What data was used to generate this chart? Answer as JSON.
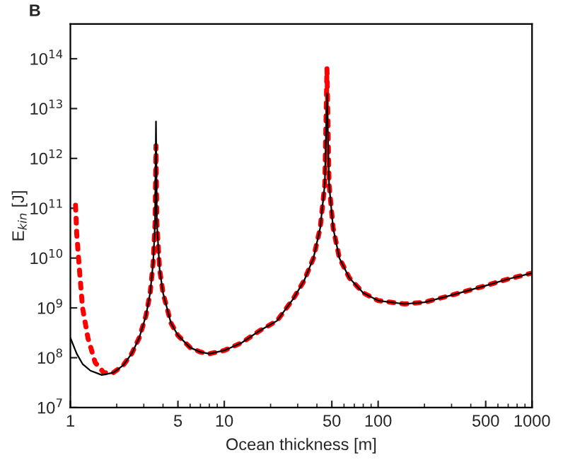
{
  "chart_data": {
    "type": "line",
    "title": "B",
    "xlabel": "Ocean thickness [m]",
    "ylabel": "E$_{kin}$ [J]",
    "log": "xy",
    "grid": false,
    "legend": false,
    "xlim": [
      1,
      1000
    ],
    "xticks": [
      1,
      5,
      10,
      50,
      100,
      500,
      1000
    ],
    "ylim": [
      10000000.0,
      500000000000000.0
    ],
    "yticks": [
      {
        "value": 10000000.0,
        "label": "10$^{7}$"
      },
      {
        "value": 100000000.0,
        "label": "10$^{8}$"
      },
      {
        "value": 1000000000.0,
        "label": "10$^{9}$"
      },
      {
        "value": 10000000000.0,
        "label": "10$^{10}$"
      },
      {
        "value": 100000000000.0,
        "label": "10$^{11}$"
      },
      {
        "value": 1000000000000.0,
        "label": "10$^{12}$"
      },
      {
        "value": 10000000000000.0,
        "label": "10$^{13}$"
      },
      {
        "value": 100000000000000.0,
        "label": "10$^{14}$"
      }
    ],
    "series": [
      {
        "color": "#000000",
        "line_style": "solid",
        "x": [
          1.0,
          1.1,
          1.2,
          1.35,
          1.6,
          1.9,
          2.2,
          2.5,
          2.8,
          3.1,
          3.3,
          3.45,
          3.55,
          3.6,
          3.65,
          3.8,
          4.0,
          4.5,
          5,
          6,
          7,
          8,
          10,
          13,
          17,
          22,
          28,
          33,
          38,
          42,
          45,
          46.5,
          48,
          51,
          56,
          65,
          80,
          100,
          148,
          200,
          300,
          500,
          700,
          1000
        ],
        "values": [
          250000000.0,
          120000000.0,
          75000000.0,
          55000000.0,
          45000000.0,
          50000000.0,
          70000000.0,
          120000000.0,
          250000000.0,
          700000000.0,
          2000000000.0,
          8000000000.0,
          50000000000.0,
          5500000000000.0,
          50000000000.0,
          6000000000.0,
          2000000000.0,
          500000000.0,
          280000000.0,
          160000000.0,
          130000000.0,
          120000000.0,
          140000000.0,
          200000000.0,
          350000000.0,
          550000000.0,
          1500000000.0,
          3500000000.0,
          10000000000.0,
          40000000000.0,
          300000000000.0,
          20000000000000.0,
          300000000000.0,
          40000000000.0,
          10000000000.0,
          4000000000.0,
          2000000000.0,
          1400000000.0,
          1200000000.0,
          1300000000.0,
          1800000000.0,
          2800000000.0,
          3800000000.0,
          5000000000.0
        ]
      },
      {
        "color": "#ff0000",
        "line_style": "dotted",
        "x": [
          1.08,
          1.1,
          1.15,
          1.2,
          1.3,
          1.45,
          1.65,
          1.9,
          2.2,
          2.5,
          2.8,
          3.1,
          3.3,
          3.45,
          3.55,
          3.6,
          3.65,
          3.8,
          4.0,
          4.5,
          5,
          6,
          7,
          8,
          10,
          13,
          17,
          22,
          28,
          33,
          38,
          42,
          45,
          46.5,
          48,
          51,
          56,
          65,
          80,
          100,
          148,
          200,
          300,
          500,
          700,
          1000
        ],
        "values": [
          115000000000.0,
          30000000000.0,
          5000000000.0,
          1000000000.0,
          250000000.0,
          80000000.0,
          50000000.0,
          50000000.0,
          70000000.0,
          120000000.0,
          250000000.0,
          700000000.0,
          2000000000.0,
          8000000000.0,
          50000000000.0,
          1800000000000.0,
          50000000000.0,
          6000000000.0,
          2000000000.0,
          500000000.0,
          280000000.0,
          160000000.0,
          130000000.0,
          120000000.0,
          140000000.0,
          200000000.0,
          350000000.0,
          550000000.0,
          1500000000.0,
          3500000000.0,
          10000000000.0,
          40000000000.0,
          300000000000.0,
          63000000000000.0,
          300000000000.0,
          40000000000.0,
          10000000000.0,
          4000000000.0,
          2000000000.0,
          1400000000.0,
          1200000000.0,
          1300000000.0,
          1800000000.0,
          2800000000.0,
          3800000000.0,
          5000000000.0
        ]
      }
    ]
  }
}
